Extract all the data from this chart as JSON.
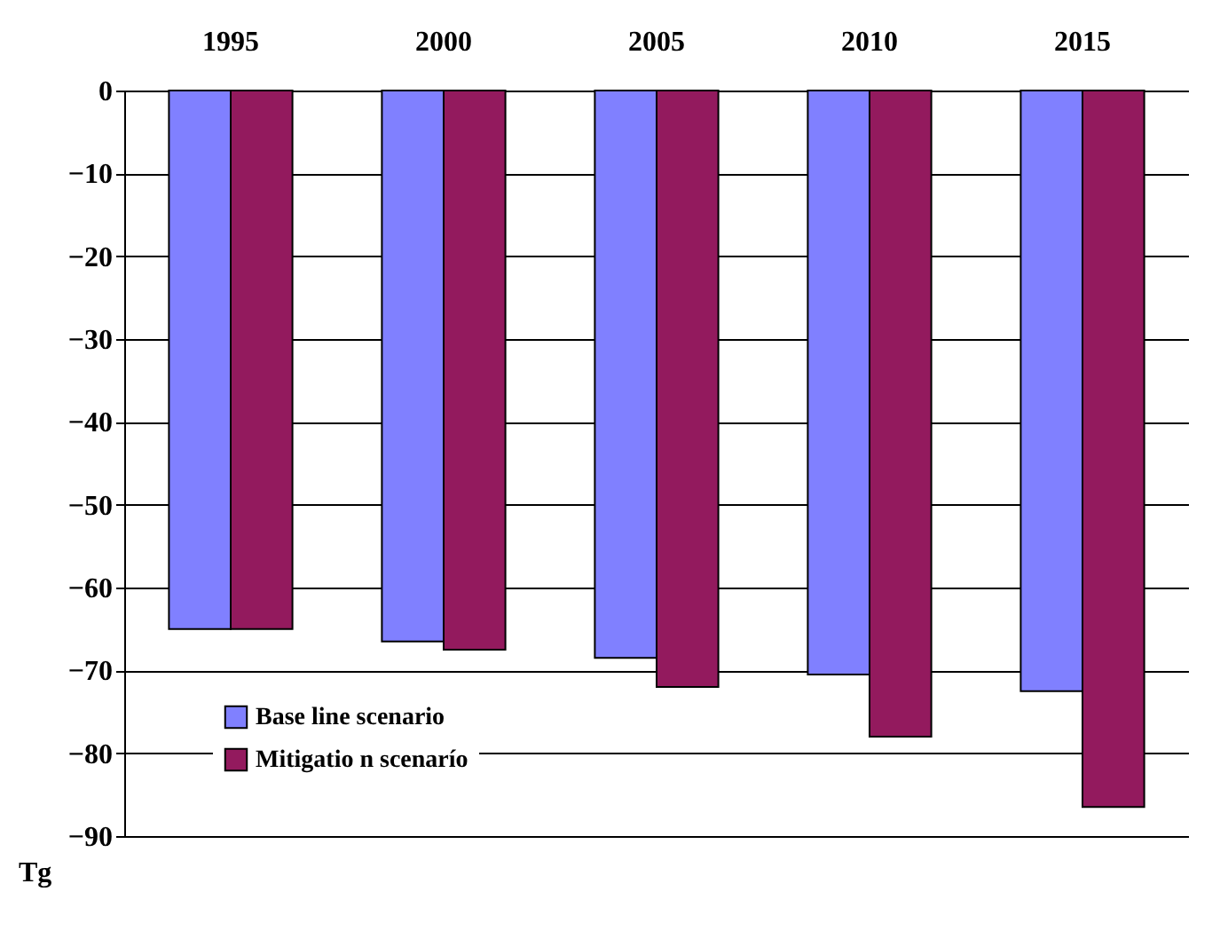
{
  "chart_data": {
    "type": "bar",
    "ylabel": "Tg",
    "categories": [
      "1995",
      "2000",
      "2005",
      "2010",
      "2015"
    ],
    "series": [
      {
        "name": "Base line  scenario",
        "color": "#8080ff",
        "values": [
          -65,
          -66.5,
          -68.5,
          -70.5,
          -72.5
        ]
      },
      {
        "name": "Mitigatio n scenarío",
        "color": "#931a5e",
        "values": [
          -65,
          -67.5,
          -72,
          -78,
          -86.5
        ]
      }
    ],
    "ylim": [
      -90,
      0
    ],
    "yticks": [
      -90,
      -80,
      -70,
      -60,
      -50,
      -40,
      -30,
      -20,
      -10,
      0
    ],
    "grid": "y",
    "legend": "bottom left"
  }
}
